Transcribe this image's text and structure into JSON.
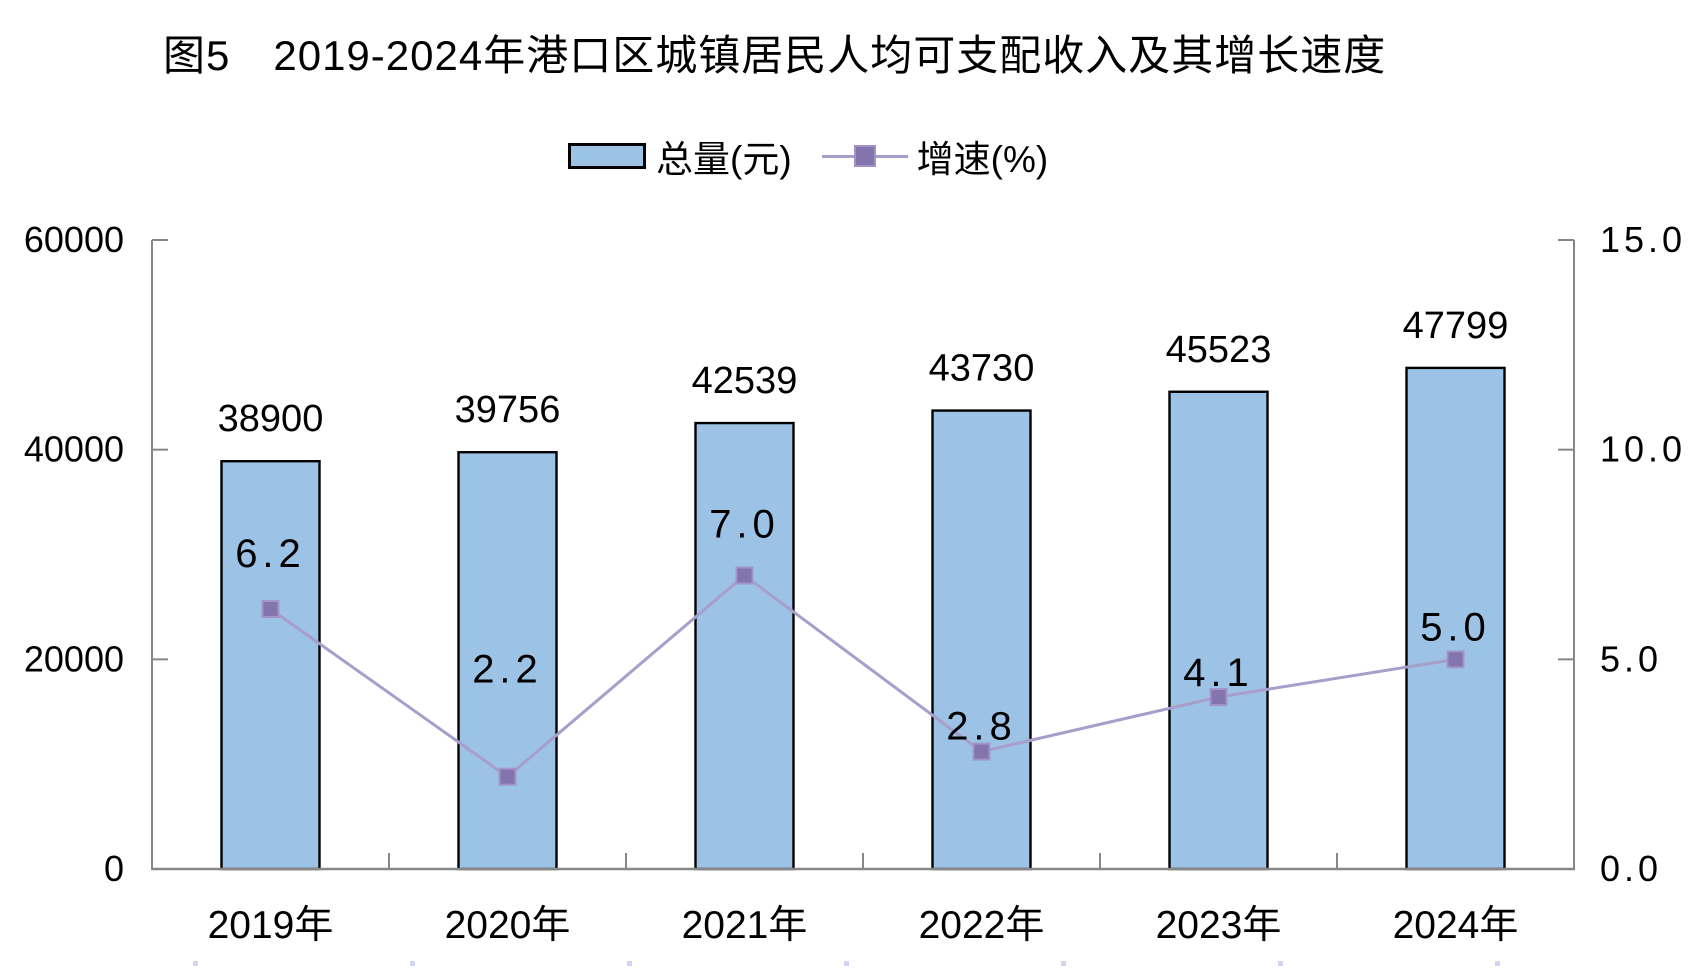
{
  "title": "图5　2019-2024年港口区城镇居民人均可支配收入及其增长速度",
  "chart_data": {
    "type": "bar+line",
    "categories": [
      "2019年",
      "2020年",
      "2021年",
      "2022年",
      "2023年",
      "2024年"
    ],
    "series": [
      {
        "name": "总量(元)",
        "type": "bar",
        "axis": "left",
        "values": [
          38900,
          39756,
          42539,
          43730,
          45523,
          47799
        ],
        "labels": [
          "38900",
          "39756",
          "42539",
          "43730",
          "45523",
          "47799"
        ]
      },
      {
        "name": "增速(%)",
        "type": "line",
        "axis": "right",
        "values": [
          6.2,
          2.2,
          7.0,
          2.8,
          4.1,
          5.0
        ],
        "labels": [
          "6.2",
          "2.2",
          "7.0",
          "2.8",
          "4.1",
          "5.0"
        ],
        "label_dy": [
          -55,
          -107,
          -51,
          -25,
          -24,
          -32
        ]
      }
    ],
    "left_axis": {
      "min": 0,
      "max": 60000,
      "ticks": [
        0,
        20000,
        40000,
        60000
      ],
      "labels": [
        "0",
        "20000",
        "40000",
        "60000"
      ]
    },
    "right_axis": {
      "min": 0,
      "max": 15,
      "ticks": [
        0,
        5,
        10,
        15
      ],
      "labels": [
        "0.0",
        "5.0",
        "10.0",
        "15.0"
      ]
    },
    "grid": false,
    "legend_position": "top",
    "colors": {
      "bar_fill": "#9CC2E5",
      "bar_border": "#000000",
      "line": "#A79ECB",
      "marker": "#8374AE",
      "marker_border": "#A195C8",
      "axis": "#878787",
      "text": "#000000",
      "artifact_dash": "#A9B1E3"
    }
  }
}
